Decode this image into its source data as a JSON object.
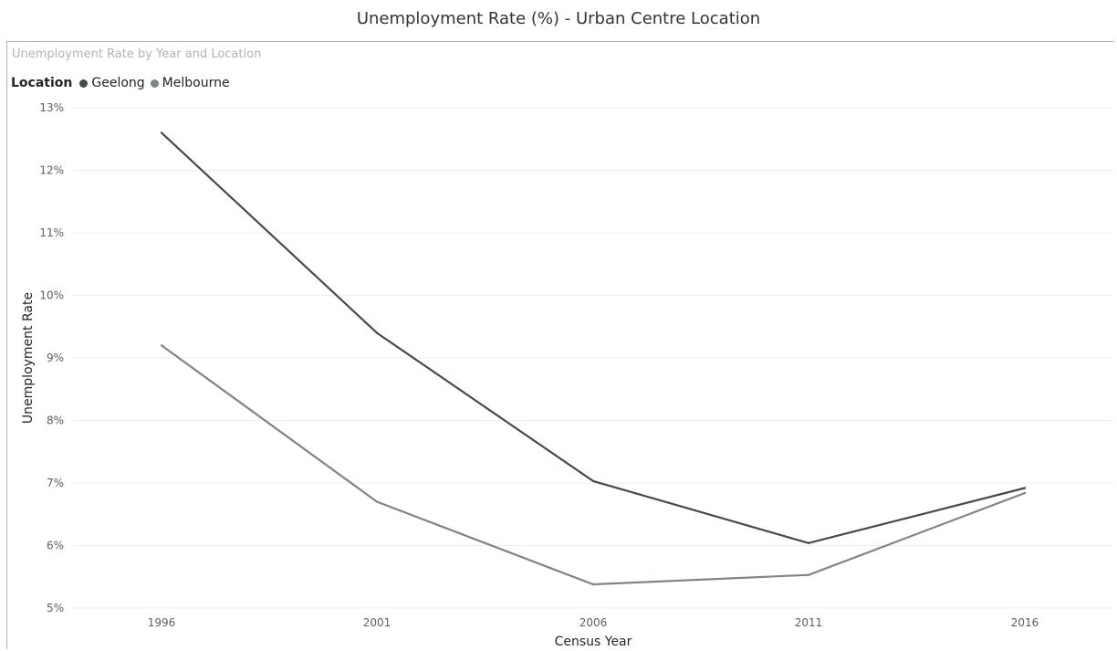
{
  "page_title": "Unemployment Rate (%) - Urban Centre Location",
  "visual_title": "Unemployment Rate by Year and Location",
  "legend": {
    "title": "Location",
    "items": [
      {
        "label": "Geelong",
        "color": "#454a4c"
      },
      {
        "label": "Melbourne",
        "color": "#7f8584"
      }
    ]
  },
  "chart_data": {
    "type": "line",
    "title": "Unemployment Rate by Year and Location",
    "xlabel": "Census Year",
    "ylabel": "Unemployment Rate",
    "x": [
      "1996",
      "2001",
      "2006",
      "2011",
      "2016"
    ],
    "ylim": [
      5,
      13
    ],
    "yticks": [
      "5%",
      "6%",
      "7%",
      "8%",
      "9%",
      "10%",
      "11%",
      "12%",
      "13%"
    ],
    "grid": true,
    "legend_position": "top-left",
    "series": [
      {
        "name": "Geelong",
        "color": "#454a4c",
        "values": [
          12.6,
          9.4,
          7.03,
          6.04,
          6.92
        ]
      },
      {
        "name": "Melbourne",
        "color": "#7f8584",
        "values": [
          9.2,
          6.7,
          5.38,
          5.53,
          6.84
        ]
      }
    ]
  }
}
